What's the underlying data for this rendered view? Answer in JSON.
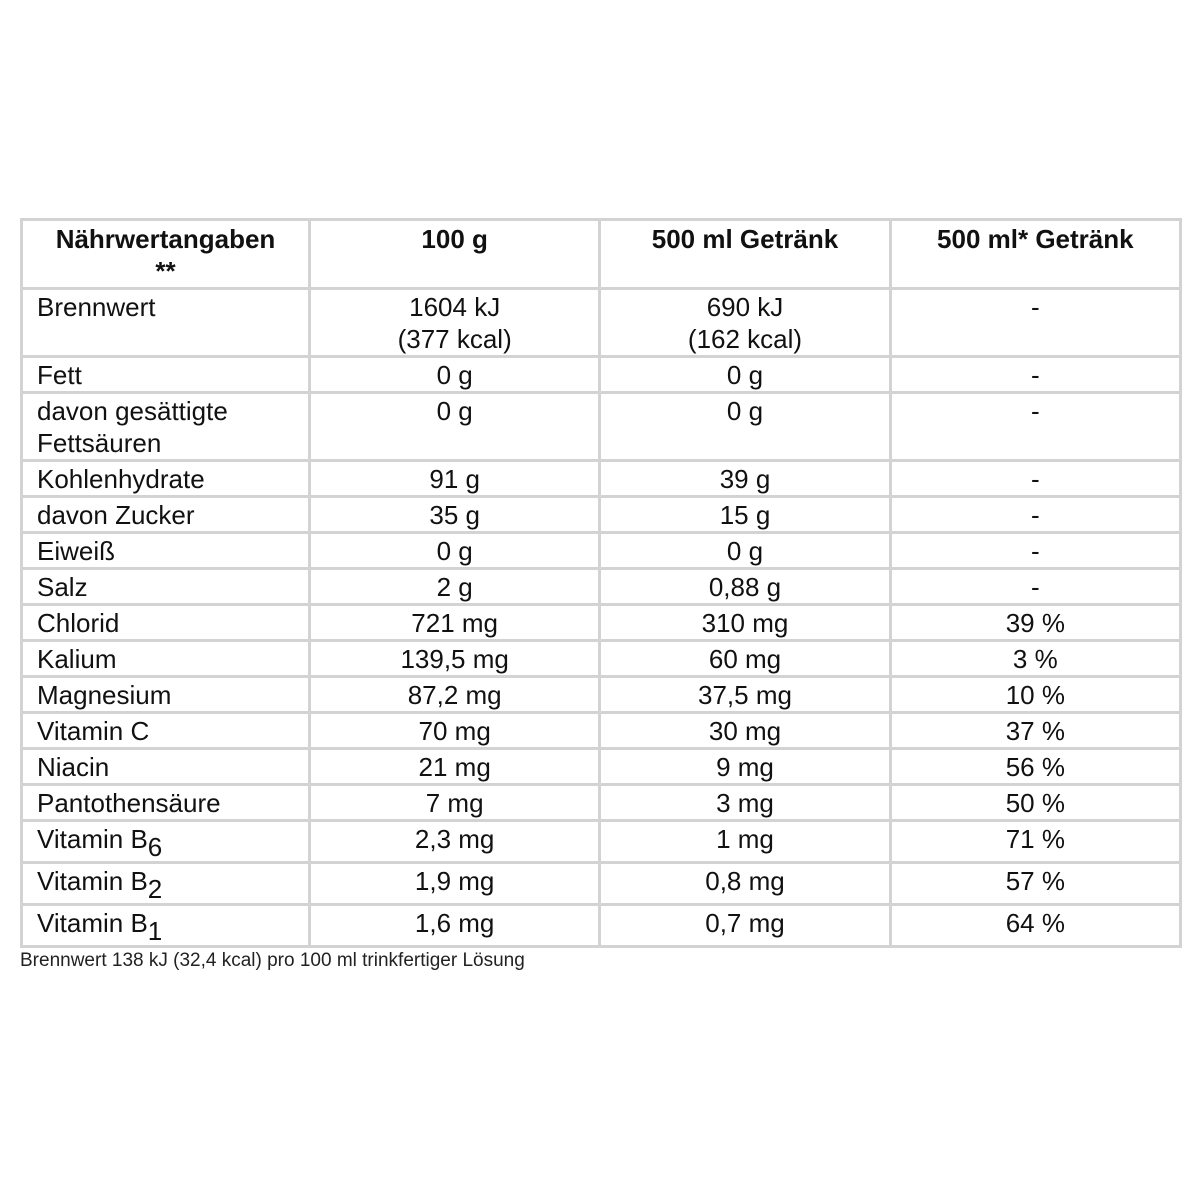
{
  "table": {
    "headers": [
      "Nährwertangaben **",
      "100 g",
      "500 ml Getränk",
      "500 ml* Getränk"
    ],
    "header_first_line1": "Nährwertangaben",
    "header_first_line2": "**",
    "rows": [
      {
        "name": "Brennwert",
        "sub": "",
        "v100": [
          "1604 kJ",
          "(377 kcal)"
        ],
        "v500": [
          "690 kJ",
          "(162 kcal)"
        ],
        "pct": "-",
        "h": 2
      },
      {
        "name": "Fett",
        "sub": "",
        "v100": [
          "0 g"
        ],
        "v500": [
          "0 g"
        ],
        "pct": "-",
        "h": 1
      },
      {
        "name": "davon gesättigte Fettsäuren",
        "sub": "",
        "v100": [
          "0 g"
        ],
        "v500": [
          "0 g"
        ],
        "pct": "-",
        "h": 2
      },
      {
        "name": "Kohlenhydrate",
        "sub": "",
        "v100": [
          "91 g"
        ],
        "v500": [
          "39 g"
        ],
        "pct": "-",
        "h": 1
      },
      {
        "name": "davon Zucker",
        "sub": "",
        "v100": [
          "35 g"
        ],
        "v500": [
          "15 g"
        ],
        "pct": "-",
        "h": 1
      },
      {
        "name": "Eiweiß",
        "sub": "",
        "v100": [
          "0 g"
        ],
        "v500": [
          "0 g"
        ],
        "pct": "-",
        "h": 1
      },
      {
        "name": "Salz",
        "sub": "",
        "v100": [
          "2 g"
        ],
        "v500": [
          "0,88 g"
        ],
        "pct": "-",
        "h": 1
      },
      {
        "name": "Chlorid",
        "sub": "",
        "v100": [
          "721 mg"
        ],
        "v500": [
          "310 mg"
        ],
        "pct": "39 %",
        "h": 1
      },
      {
        "name": "Kalium",
        "sub": "",
        "v100": [
          "139,5 mg"
        ],
        "v500": [
          "60 mg"
        ],
        "pct": "3 %",
        "h": 1
      },
      {
        "name": "Magnesium",
        "sub": "",
        "v100": [
          "87,2 mg"
        ],
        "v500": [
          "37,5 mg"
        ],
        "pct": "10 %",
        "h": 1
      },
      {
        "name": "Vitamin C",
        "sub": "",
        "v100": [
          "70 mg"
        ],
        "v500": [
          "30 mg"
        ],
        "pct": "37 %",
        "h": 1
      },
      {
        "name": "Niacin",
        "sub": "",
        "v100": [
          "21 mg"
        ],
        "v500": [
          "9 mg"
        ],
        "pct": "56 %",
        "h": 1
      },
      {
        "name": "Pantothensäure",
        "sub": "",
        "v100": [
          "7 mg"
        ],
        "v500": [
          "3 mg"
        ],
        "pct": "50 %",
        "h": 1
      },
      {
        "name": "Vitamin B",
        "sub": "6",
        "v100": [
          "2,3 mg"
        ],
        "v500": [
          "1 mg"
        ],
        "pct": "71 %",
        "h": 3
      },
      {
        "name": "Vitamin B",
        "sub": "2",
        "v100": [
          "1,9 mg"
        ],
        "v500": [
          "0,8 mg"
        ],
        "pct": "57 %",
        "h": 3
      },
      {
        "name": "Vitamin B",
        "sub": "1",
        "v100": [
          "1,6 mg"
        ],
        "v500": [
          "0,7 mg"
        ],
        "pct": "64 %",
        "h": 3
      }
    ]
  },
  "footer": "Brennwert 138 kJ (32,4 kcal) pro 100 ml trinkfertiger Lösung"
}
